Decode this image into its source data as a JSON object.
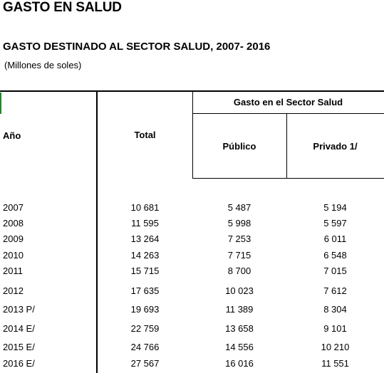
{
  "title": "GASTO EN SALUD",
  "subtitle": "GASTO DESTINADO AL SECTOR SALUD, 2007- 2016",
  "unit_note": "(Millones de soles)",
  "table": {
    "col_year": "Año",
    "col_total": "Total",
    "group_header": "Gasto en el Sector Salud",
    "col_public": "Público",
    "col_private": "Privado 1/",
    "rows": [
      {
        "year": "2007",
        "total": "10 681",
        "public": "5 487",
        "private": "5 194"
      },
      {
        "year": "2008",
        "total": "11 595",
        "public": "5 998",
        "private": "5 597"
      },
      {
        "year": "2009",
        "total": "13 264",
        "public": "7 253",
        "private": "6 011"
      },
      {
        "year": "2010",
        "total": "14 263",
        "public": "7 715",
        "private": "6 548"
      },
      {
        "year": "2011",
        "total": "15 715",
        "public": "8 700",
        "private": "7 015"
      },
      {
        "year": "2012",
        "total": "17 635",
        "public": "10 023",
        "private": "7 612"
      },
      {
        "year": "2013 P/",
        "total": "19 693",
        "public": "11 389",
        "private": "8 304"
      },
      {
        "year": "2014 E/",
        "total": "22 759",
        "public": "13 658",
        "private": "9 101"
      },
      {
        "year": "2015 E/",
        "total": "24 766",
        "public": "14 556",
        "private": "10 210"
      },
      {
        "year": "2016 E/",
        "total": "27 567",
        "public": "16 016",
        "private": "11 551"
      }
    ]
  }
}
